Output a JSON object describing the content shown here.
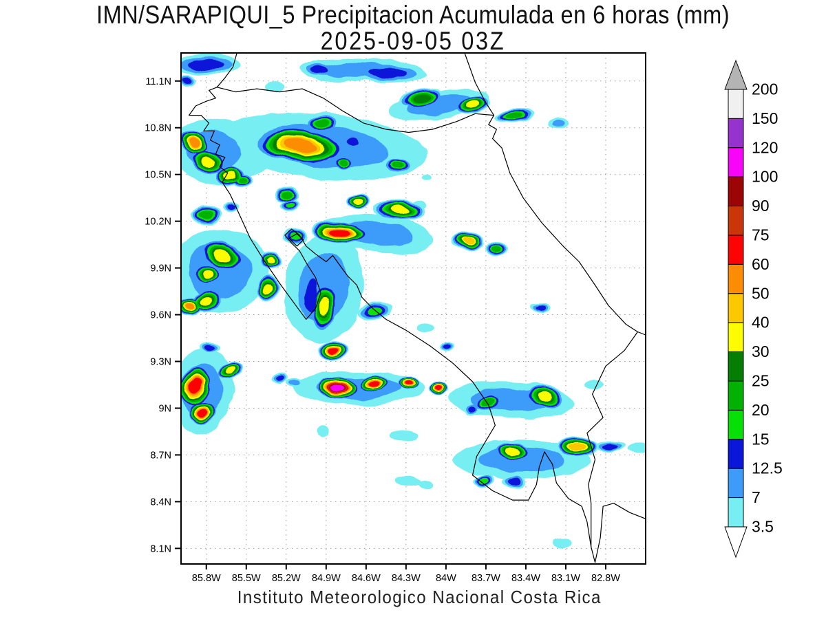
{
  "title": {
    "line1": "IMN/SARAPIQUI_5 Precipitacion Acumulada en 6 horas (mm)",
    "line2": "2025-09-05 03Z"
  },
  "footer": "Instituto Meteorologico Nacional Costa Rica",
  "colorbar": {
    "tick_labels": [
      "200",
      "150",
      "120",
      "100",
      "90",
      "75",
      "60",
      "50",
      "40",
      "30",
      "25",
      "20",
      "15",
      "12.5",
      "7",
      "3.5"
    ]
  },
  "chart_data": {
    "type": "filled_contour_map",
    "title": "IMN/SARAPIQUI_5 Precipitacion Acumulada en 6 horas (mm)",
    "subtitle": "2025-09-05 03Z",
    "region": "Costa Rica",
    "units": "mm",
    "grid": true,
    "lon_axis": {
      "ticks": [
        "85.8W",
        "85.5W",
        "85.2W",
        "84.9W",
        "84.6W",
        "84.3W",
        "84W",
        "83.7W",
        "83.4W",
        "83.1W",
        "82.8W"
      ],
      "range_deg_west": [
        85.99,
        82.5
      ]
    },
    "lat_axis": {
      "ticks": [
        "11.1N",
        "10.8N",
        "10.5N",
        "10.2N",
        "9.9N",
        "9.6N",
        "9.3N",
        "9N",
        "8.7N",
        "8.4N",
        "8.1N"
      ],
      "range_deg_north": [
        8.0,
        11.28
      ]
    },
    "levels_mm": [
      3.5,
      7,
      12.5,
      15,
      20,
      25,
      30,
      40,
      50,
      60,
      75,
      90,
      100,
      120,
      150,
      200
    ],
    "interval_colors": [
      "#76eef2",
      "#3d9bfa",
      "#0a16d8",
      "#07e007",
      "#02b102",
      "#047f04",
      "#fdfd02",
      "#fdc802",
      "#fc8d02",
      "#fd0404",
      "#c93608",
      "#9b0505",
      "#f804f8",
      "#9633cf",
      "#f0f0f0"
    ],
    "over_color": "#b4b4b4",
    "under_color": "#ffffff",
    "cell_format": [
      "lon_deg",
      "lat_deg",
      "rx_px",
      "ry_px",
      "rot_deg",
      "peak_level_mm"
    ],
    "precip_cells": [
      [
        -84.92,
        10.68,
        150,
        48,
        5,
        7
      ],
      [
        -85.75,
        10.65,
        62,
        48,
        10,
        7
      ],
      [
        -85.7,
        9.88,
        72,
        62,
        0,
        7
      ],
      [
        -84.92,
        9.77,
        58,
        78,
        8,
        7
      ],
      [
        -84.65,
        11.17,
        92,
        17,
        0,
        7
      ],
      [
        -84.05,
        10.95,
        72,
        19,
        -8,
        7
      ],
      [
        -85.83,
        9.11,
        46,
        62,
        5,
        7
      ],
      [
        -84.53,
        10.12,
        85,
        28,
        5,
        7
      ],
      [
        -84.66,
        9.13,
        95,
        24,
        0,
        7
      ],
      [
        -83.51,
        9.05,
        92,
        27,
        3,
        7
      ],
      [
        -83.43,
        8.67,
        100,
        28,
        0,
        7
      ],
      [
        -85.8,
        11.21,
        50,
        16,
        0,
        12.5
      ],
      [
        -85.95,
        11.1,
        12,
        9,
        0,
        12.5
      ],
      [
        -85.28,
        11.07,
        14,
        7,
        0,
        3.5
      ],
      [
        -84.96,
        11.17,
        27,
        10,
        0,
        12.5
      ],
      [
        -84.43,
        11.15,
        54,
        14,
        0,
        12.5
      ],
      [
        -84.19,
        10.99,
        31,
        14,
        -12,
        25
      ],
      [
        -83.8,
        10.95,
        25,
        12,
        -12,
        30
      ],
      [
        -83.49,
        10.88,
        29,
        10,
        -5,
        20
      ],
      [
        -83.16,
        10.83,
        16,
        8,
        0,
        7
      ],
      [
        -85.89,
        10.71,
        25,
        18,
        25,
        50
      ],
      [
        -85.79,
        10.58,
        28,
        19,
        15,
        30
      ],
      [
        -85.62,
        10.49,
        21,
        14,
        0,
        30
      ],
      [
        -85.09,
        10.68,
        64,
        27,
        6,
        50
      ],
      [
        -84.93,
        10.83,
        23,
        12,
        0,
        20
      ],
      [
        -84.7,
        10.71,
        17,
        12,
        0,
        12.5
      ],
      [
        -84.77,
        10.57,
        16,
        11,
        0,
        20
      ],
      [
        -84.37,
        10.56,
        20,
        11,
        0,
        20
      ],
      [
        -85.53,
        10.46,
        15,
        9,
        0,
        20
      ],
      [
        -85.2,
        10.37,
        17,
        12,
        10,
        20
      ],
      [
        -85.8,
        10.24,
        21,
        15,
        0,
        20
      ],
      [
        -85.62,
        10.3,
        13,
        8,
        0,
        12.5
      ],
      [
        -85.18,
        10.3,
        14,
        8,
        0,
        15
      ],
      [
        -84.79,
        10.13,
        40,
        18,
        5,
        60
      ],
      [
        -84.35,
        10.27,
        38,
        15,
        5,
        30
      ],
      [
        -84.65,
        10.33,
        17,
        11,
        -10,
        30
      ],
      [
        -84.15,
        10.48,
        7,
        5,
        0,
        3.5
      ],
      [
        -83.84,
        10.07,
        24,
        14,
        0,
        40
      ],
      [
        -83.62,
        10.02,
        18,
        10,
        0,
        20
      ],
      [
        -85.67,
        9.98,
        32,
        23,
        20,
        30
      ],
      [
        -85.8,
        9.86,
        21,
        15,
        0,
        30
      ],
      [
        -85.92,
        9.66,
        19,
        15,
        0,
        50
      ],
      [
        -85.79,
        9.69,
        23,
        17,
        0,
        30
      ],
      [
        -85.32,
        9.95,
        17,
        14,
        0,
        30
      ],
      [
        -85.33,
        9.77,
        15,
        20,
        0,
        30
      ],
      [
        -85.14,
        10.1,
        19,
        11,
        0,
        15
      ],
      [
        -85.01,
        9.72,
        18,
        44,
        5,
        12.5
      ],
      [
        -84.91,
        9.65,
        20,
        36,
        8,
        30
      ],
      [
        -84.85,
        9.37,
        22,
        15,
        0,
        60
      ],
      [
        -84.53,
        9.63,
        26,
        14,
        -12,
        15
      ],
      [
        -83.28,
        9.65,
        16,
        7,
        0,
        12.5
      ],
      [
        -84.15,
        9.53,
        11,
        6,
        0,
        3.5
      ],
      [
        -83.99,
        9.39,
        10,
        8,
        0,
        12.5
      ],
      [
        -85.88,
        9.14,
        25,
        32,
        10,
        60
      ],
      [
        -85.83,
        8.97,
        22,
        17,
        0,
        60
      ],
      [
        -85.62,
        9.24,
        19,
        11,
        -20,
        30
      ],
      [
        -85.78,
        9.39,
        13,
        8,
        0,
        12.5
      ],
      [
        -85.25,
        9.19,
        14,
        8,
        -10,
        12.5
      ],
      [
        -85.13,
        9.16,
        13,
        7,
        0,
        7
      ],
      [
        -84.81,
        9.13,
        32,
        16,
        0,
        100
      ],
      [
        -84.54,
        9.16,
        23,
        13,
        0,
        60
      ],
      [
        -84.29,
        9.16,
        16,
        10,
        0,
        60
      ],
      [
        -84.06,
        9.13,
        15,
        9,
        0,
        60
      ],
      [
        -83.8,
        9.0,
        13,
        9,
        0,
        12.5
      ],
      [
        -83.67,
        9.03,
        21,
        13,
        0,
        20
      ],
      [
        -83.26,
        9.07,
        31,
        18,
        8,
        30
      ],
      [
        -82.88,
        9.15,
        13,
        6,
        0,
        3.5
      ],
      [
        -83.5,
        8.72,
        27,
        13,
        4,
        30
      ],
      [
        -83.01,
        8.75,
        29,
        15,
        0,
        40
      ],
      [
        -83.71,
        8.53,
        14,
        9,
        0,
        15
      ],
      [
        -83.49,
        8.53,
        18,
        11,
        0,
        12.5
      ],
      [
        -82.77,
        8.76,
        21,
        8,
        0,
        12.5
      ],
      [
        -82.55,
        8.74,
        18,
        7,
        0,
        3.5
      ],
      [
        -84.17,
        8.51,
        10,
        7,
        0,
        3.5
      ],
      [
        -84.93,
        8.86,
        9,
        9,
        0,
        3.5
      ],
      [
        -84.31,
        8.82,
        20,
        8,
        0,
        3.5
      ],
      [
        -84.29,
        8.53,
        17,
        8,
        0,
        3.5
      ],
      [
        -83.13,
        8.13,
        12,
        6,
        0,
        3.5
      ],
      [
        -85.42,
        10.54,
        19,
        10,
        -30,
        3.5
      ],
      [
        -84.2,
        10.3,
        12,
        7,
        0,
        3.5
      ]
    ]
  }
}
